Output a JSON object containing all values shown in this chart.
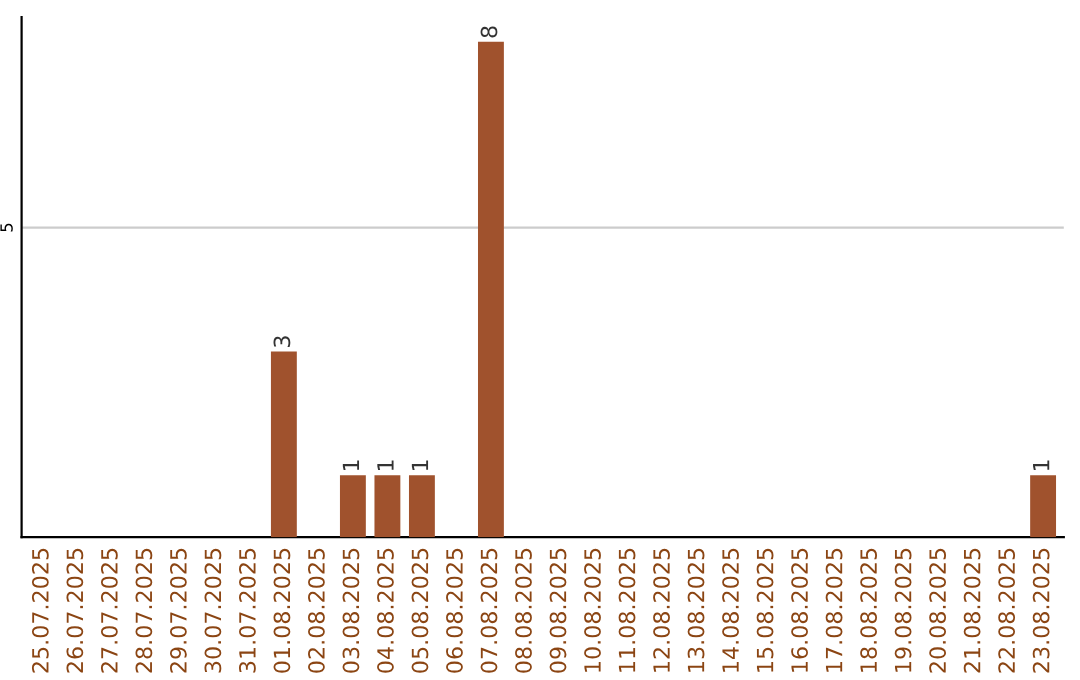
{
  "chart_data": {
    "type": "bar",
    "categories": [
      "25.07.2025",
      "26.07.2025",
      "27.07.2025",
      "28.07.2025",
      "29.07.2025",
      "30.07.2025",
      "31.07.2025",
      "01.08.2025",
      "02.08.2025",
      "03.08.2025",
      "04.08.2025",
      "05.08.2025",
      "06.08.2025",
      "07.08.2025",
      "08.08.2025",
      "09.08.2025",
      "10.08.2025",
      "11.08.2025",
      "12.08.2025",
      "13.08.2025",
      "14.08.2025",
      "15.08.2025",
      "16.08.2025",
      "17.08.2025",
      "18.08.2025",
      "19.08.2025",
      "20.08.2025",
      "21.08.2025",
      "22.08.2025",
      "23.08.2025"
    ],
    "values": [
      0,
      0,
      0,
      0,
      0,
      0,
      0,
      3,
      0,
      1,
      1,
      1,
      0,
      8,
      0,
      0,
      0,
      0,
      0,
      0,
      0,
      0,
      0,
      0,
      0,
      0,
      0,
      0,
      0,
      1
    ],
    "value_labels": [
      null,
      null,
      null,
      null,
      null,
      null,
      null,
      "3",
      null,
      "1",
      "1",
      "1",
      null,
      "8",
      null,
      null,
      null,
      null,
      null,
      null,
      null,
      null,
      null,
      null,
      null,
      null,
      null,
      null,
      null,
      "1"
    ],
    "color": "#a0522d",
    "ylim": [
      0,
      8.4
    ],
    "yticks": [
      5
    ],
    "grid": "y"
  }
}
